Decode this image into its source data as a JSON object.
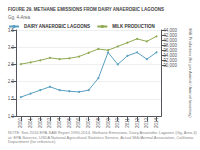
{
  "chart_data": {
    "type": "line",
    "title": "FIGURE 29. METHANE EMISSIONS FROM DAIRY ANAEROBIC LAGOONS",
    "subtitle": "Gg, 4-Area",
    "note": "NOTE: See 2016 EPA-SAB Report 1990-2014. Methane Emissions, Dairy Anaerobic Lagoons (Gg, Area 4) at: EPA Sources, USDA National Agricultural Statistics Service, Actual Milk/Animal Association, California Department (for reference).",
    "x": [
      2000,
      2001,
      2002,
      2003,
      2004,
      2005,
      2006,
      2007,
      2008,
      2009,
      2010,
      2011,
      2012,
      2013,
      2014
    ],
    "xlim": [
      1999.5,
      2014.5
    ],
    "xticks": [
      2000,
      2001,
      2002,
      2003,
      2004,
      2005,
      2006,
      2007,
      2008,
      2009,
      2010,
      2011,
      2012,
      2013,
      2014
    ],
    "ylim": [
      1.0,
      3.5
    ],
    "yticks": [
      {
        "value": 1.0,
        "label": "1.0"
      },
      1.5,
      {
        "value": 2.0,
        "label": "2.0"
      },
      2.5,
      {
        "value": 3.0,
        "label": "3.0"
      },
      3.5
    ],
    "y2lim": [
      10000,
      44000
    ],
    "y2ticks": [
      {
        "value": 30000,
        "label": "30,000"
      },
      {
        "value": 32000,
        "label": "32,000"
      },
      {
        "value": 34000,
        "label": "34,000"
      },
      {
        "value": 36000,
        "label": "36,000"
      },
      {
        "value": 38000,
        "label": "38,000"
      },
      {
        "value": 40000,
        "label": "40,000"
      },
      {
        "value": 42000,
        "label": "42,000"
      },
      {
        "value": 44000,
        "label": "44,000"
      }
    ],
    "y2label": "Milk Production (lbs per Animal / Animal Inventory)",
    "series": [
      {
        "name": "DAIRY ANAEROBIC LAGOONS",
        "color": "#5aa0c0",
        "marker": "circle",
        "values": [
          1.55,
          1.65,
          1.75,
          1.85,
          1.75,
          1.72,
          1.7,
          1.75,
          2.1,
          2.85,
          2.5,
          2.75,
          2.85,
          2.65,
          2.85
        ]
      },
      {
        "name": "MILK PRODUCTION",
        "color": "#8faa52",
        "marker": "circle",
        "axis": "y2",
        "values": [
          30500,
          31200,
          32000,
          33000,
          32500,
          32800,
          33500,
          35000,
          36500,
          36000,
          37500,
          39000,
          40500,
          39500,
          41500
        ]
      }
    ],
    "grid": true,
    "legend": "upper left"
  }
}
